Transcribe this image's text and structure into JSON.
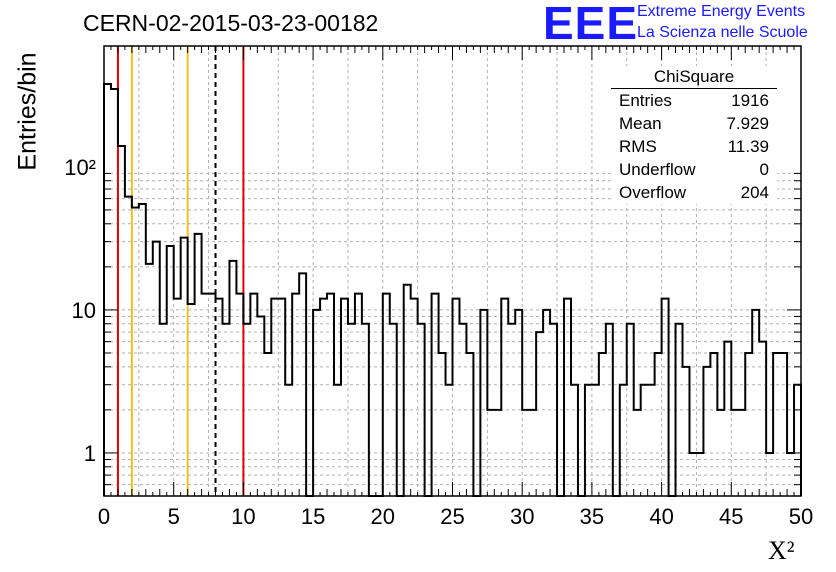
{
  "header": {
    "run_id": "CERN-02-2015-03-23-00182",
    "logo_mark": "EEE",
    "logo_line1": "Extreme Energy Events",
    "logo_line2": "La Scienza nelle Scuole"
  },
  "stats_box": {
    "title": "ChiSquare",
    "rows": [
      {
        "label": "Entries",
        "value": "1916"
      },
      {
        "label": "Mean",
        "value": "7.929"
      },
      {
        "label": "RMS",
        "value": "11.39"
      },
      {
        "label": "Underflow",
        "value": "0"
      },
      {
        "label": "Overflow",
        "value": "204"
      }
    ]
  },
  "chart_data": {
    "type": "bar",
    "style": "step-histogram",
    "title": "CERN-02-2015-03-23-00182",
    "xlabel": "X²",
    "ylabel": "Entries/bin",
    "xlim": [
      0,
      50
    ],
    "ylim": [
      0.5,
      700
    ],
    "yscale": "log",
    "grid": true,
    "bin_width": 0.5,
    "x_ticks": [
      "0",
      "5",
      "10",
      "15",
      "20",
      "25",
      "30",
      "35",
      "40",
      "45",
      "50"
    ],
    "y_ticks": [
      {
        "value": 1,
        "label": "1"
      },
      {
        "value": 10,
        "label": "10"
      },
      {
        "value": 100,
        "label": "10²"
      }
    ],
    "values": [
      380,
      350,
      140,
      62,
      52,
      55,
      21,
      30,
      8,
      28,
      12,
      32,
      11,
      34,
      13,
      13,
      12,
      8,
      22,
      13,
      8,
      13,
      9,
      5,
      12,
      12,
      3,
      13,
      18,
      0,
      10,
      12,
      13,
      3,
      12,
      8,
      13,
      8,
      0,
      0,
      13,
      8,
      0,
      15,
      12,
      8,
      0,
      13,
      5,
      3,
      12,
      8,
      5,
      0,
      10,
      2,
      2,
      12,
      8,
      10,
      2,
      2,
      7,
      10,
      8,
      0,
      12,
      3,
      0,
      3,
      3,
      5,
      8,
      0,
      3,
      8,
      2,
      3,
      3,
      5,
      12,
      0,
      8,
      4,
      1,
      1,
      4,
      5,
      2,
      6,
      2,
      2,
      5,
      10,
      6,
      1,
      5,
      5,
      1,
      3
    ],
    "reference_lines": [
      {
        "x": 1,
        "color": "#e00000",
        "style": "solid"
      },
      {
        "x": 2,
        "color": "#f0c020",
        "style": "solid"
      },
      {
        "x": 6,
        "color": "#f0c020",
        "style": "solid"
      },
      {
        "x": 8,
        "color": "#000000",
        "style": "dashed"
      },
      {
        "x": 10,
        "color": "#e00000",
        "style": "solid"
      }
    ]
  }
}
